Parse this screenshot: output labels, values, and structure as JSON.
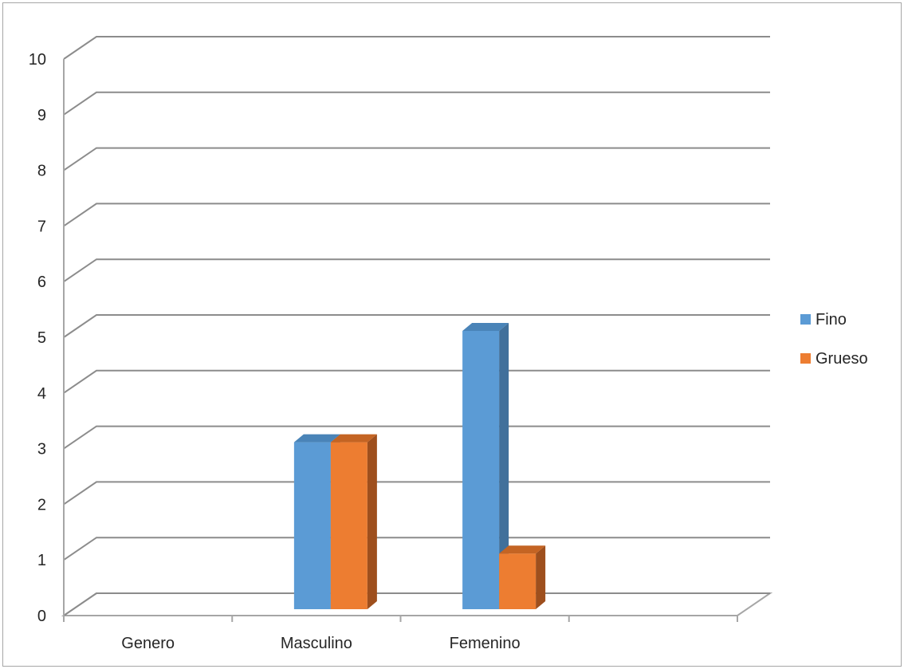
{
  "chart_data": {
    "type": "bar",
    "variant": "3d-clustered-column",
    "categories": [
      "Genero",
      "Masculino",
      "Femenino",
      ""
    ],
    "series": [
      {
        "name": "Fino",
        "values": [
          0,
          3,
          5,
          0
        ],
        "color": "#5b9bd5",
        "side_color": "#41709b",
        "top_color": "#4a84b8"
      },
      {
        "name": "Grueso",
        "values": [
          0,
          3,
          1,
          0
        ],
        "color": "#ed7d31",
        "side_color": "#9e4f1d",
        "top_color": "#c46423"
      }
    ],
    "y_ticks": [
      "0",
      "1",
      "2",
      "3",
      "4",
      "5",
      "6",
      "7",
      "8",
      "9",
      "10"
    ],
    "ylim": [
      0,
      10
    ],
    "grid": true,
    "legend": "right"
  }
}
